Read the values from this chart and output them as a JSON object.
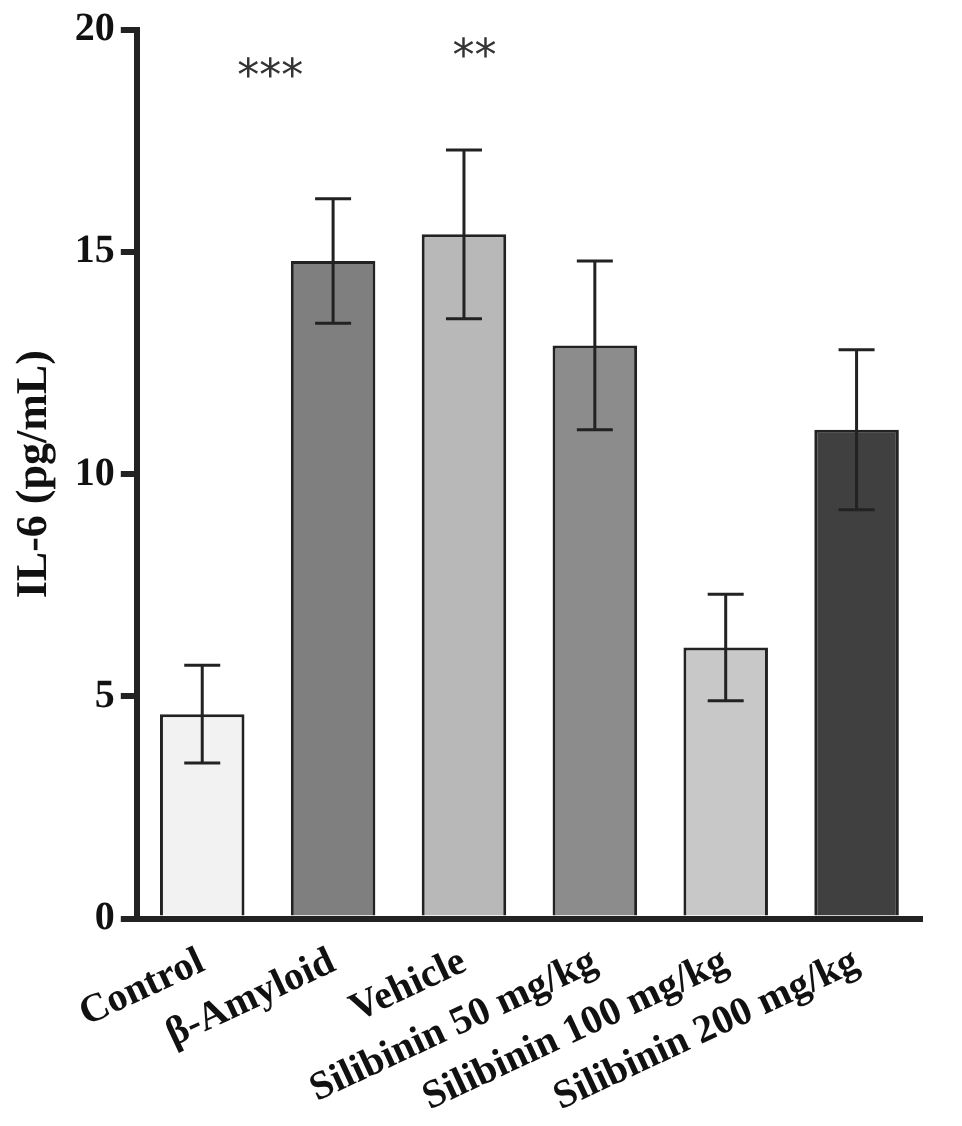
{
  "chart_data": {
    "type": "bar",
    "ylabel": "IL-6 (pg/mL)",
    "categories": [
      "Control",
      "β-Amyloid",
      "Vehicle",
      "Silibinin 50 mg/kg",
      "Silibinin 100 mg/kg",
      "Silibinin 200 mg/kg"
    ],
    "values": [
      4.6,
      14.8,
      15.4,
      12.9,
      6.1,
      11.0
    ],
    "errors": [
      1.1,
      1.4,
      1.9,
      1.9,
      1.2,
      1.8
    ],
    "colors": [
      "#f2f2f2",
      "#7f7f7f",
      "#b8b8b8",
      "#8c8c8c",
      "#c8c8c8",
      "#404040"
    ],
    "ylim": [
      0,
      20
    ],
    "yticks": [
      0,
      5,
      10,
      15,
      20
    ],
    "grid": false,
    "legend": false,
    "annotations": [
      "***",
      "**"
    ]
  }
}
